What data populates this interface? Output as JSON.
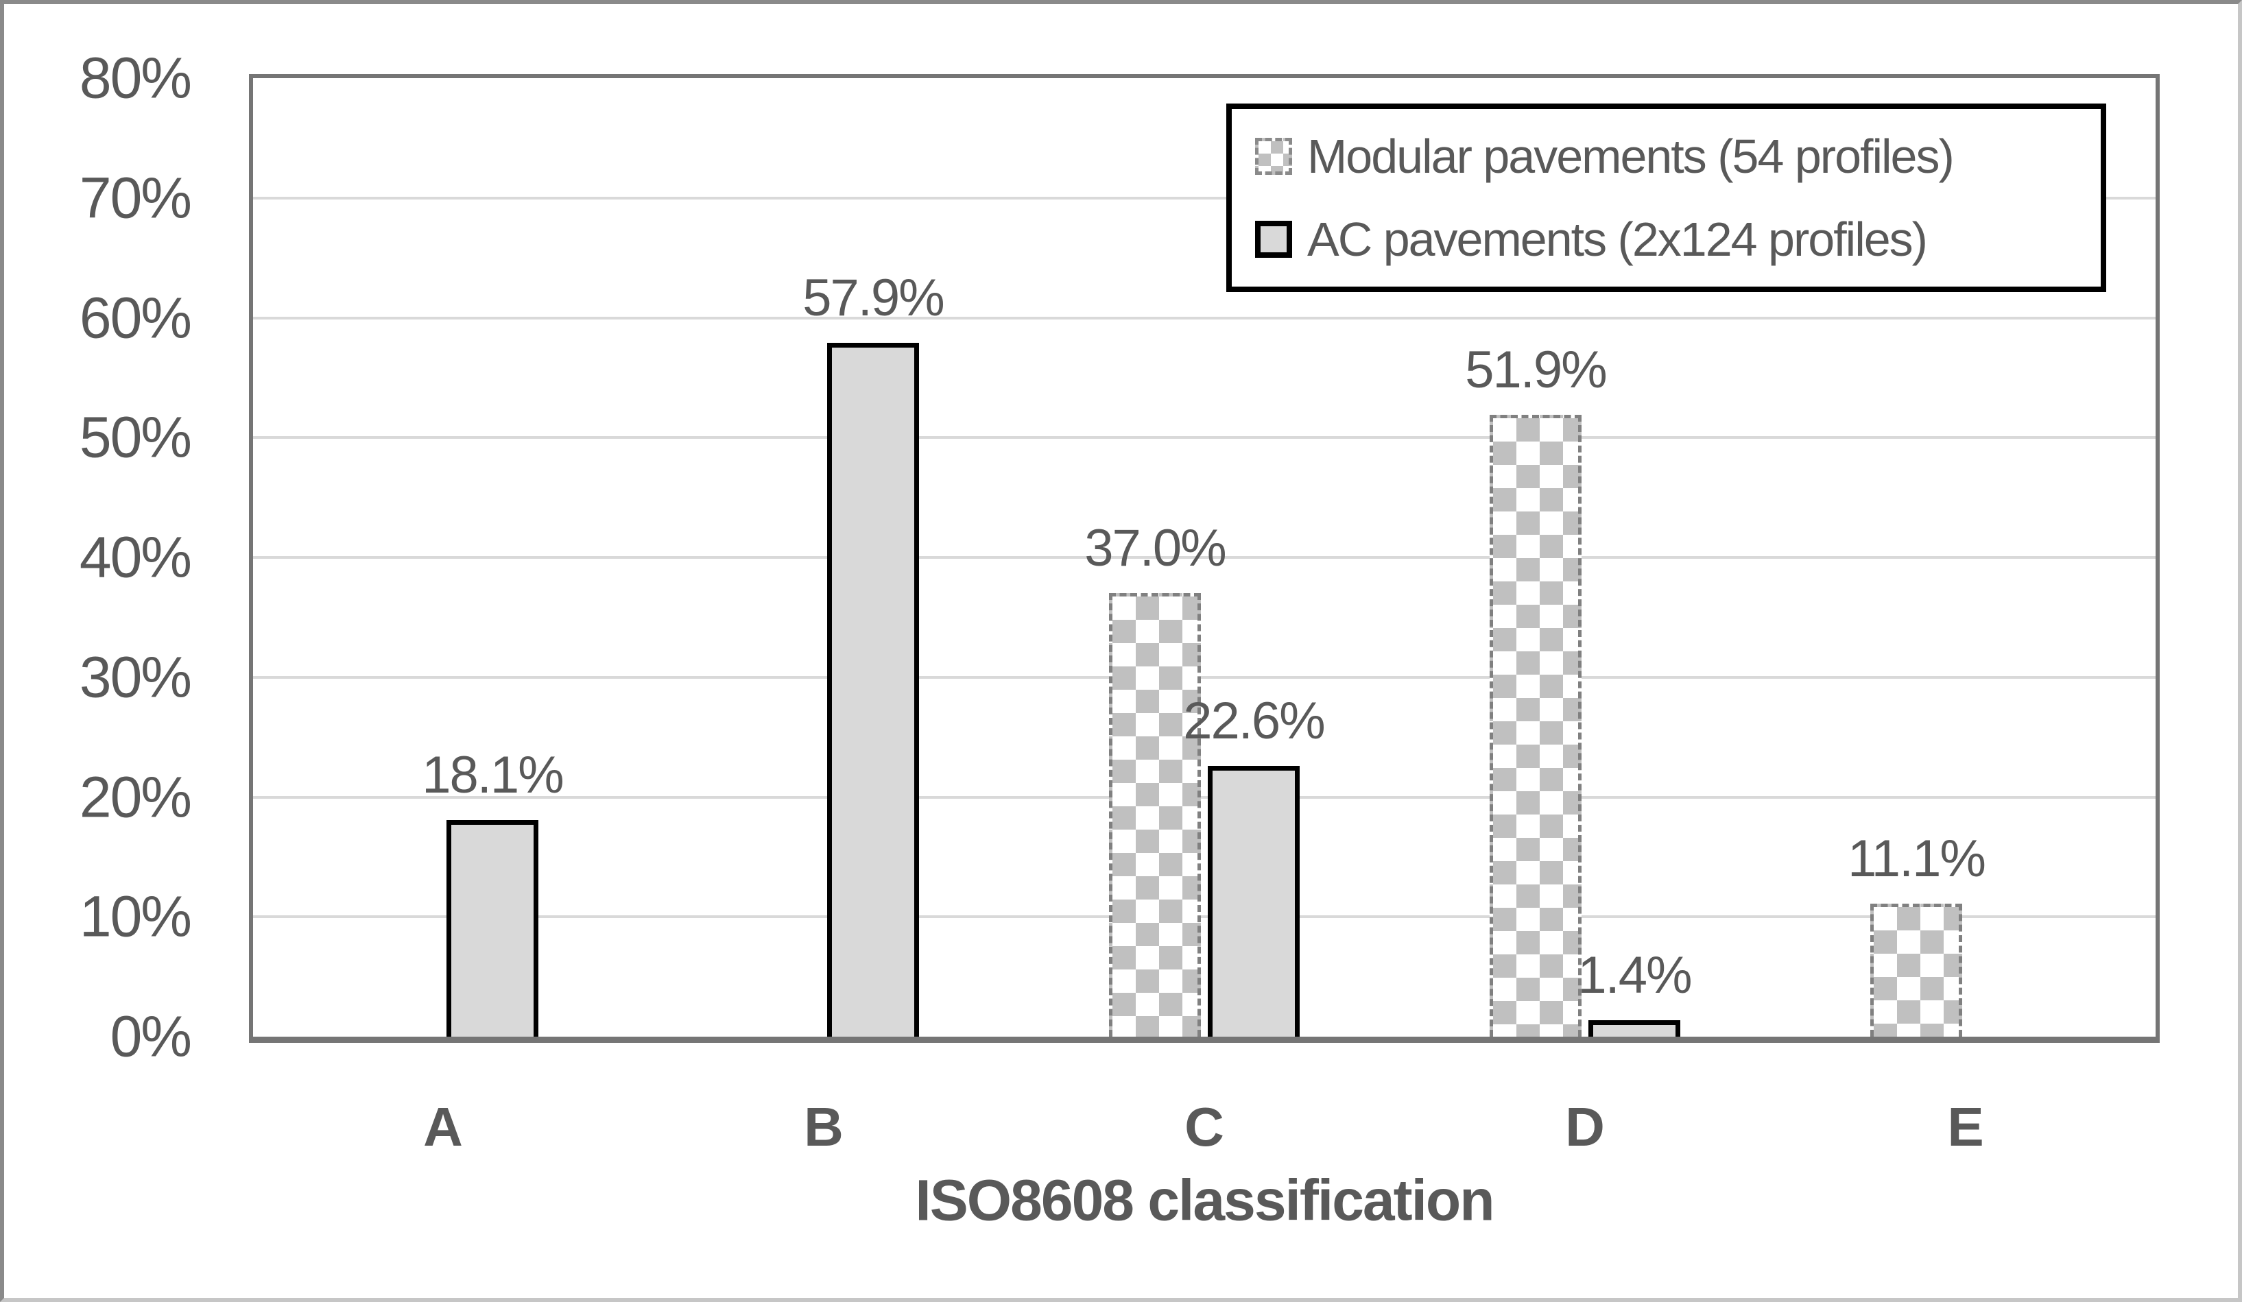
{
  "chart_data": {
    "type": "bar",
    "title": "",
    "xlabel": "ISO8608 classification",
    "ylabel": "",
    "categories": [
      "A",
      "B",
      "C",
      "D",
      "E"
    ],
    "series": [
      {
        "name": "Modular pavements (54 profiles)",
        "pattern": "checkered",
        "values": [
          null,
          null,
          37.0,
          51.9,
          11.1
        ],
        "data_labels": [
          "",
          "",
          "37.0%",
          "51.9%",
          "11.1%"
        ]
      },
      {
        "name": "AC pavements (2x124 profiles)",
        "pattern": "solid",
        "values": [
          18.1,
          57.9,
          22.6,
          1.4,
          null
        ],
        "data_labels": [
          "18.1%",
          "57.9%",
          "22.6%",
          "1.4%",
          ""
        ]
      }
    ],
    "ylim": [
      0,
      80
    ],
    "ytick_labels": [
      "80%",
      "70%",
      "60%",
      "50%",
      "40%",
      "30%",
      "20%",
      "10%",
      "0%"
    ],
    "grid": true,
    "legend_position": "top-right"
  },
  "colors": {
    "text": "#595959",
    "gridline": "#d9d9d9",
    "axis": "#757575",
    "ac_bar_fill": "#d9d9d9",
    "ac_bar_border": "#000000",
    "modular_check": "#c0c0c0",
    "modular_border": "#808080",
    "legend_border": "#000000",
    "background": "#ffffff"
  }
}
